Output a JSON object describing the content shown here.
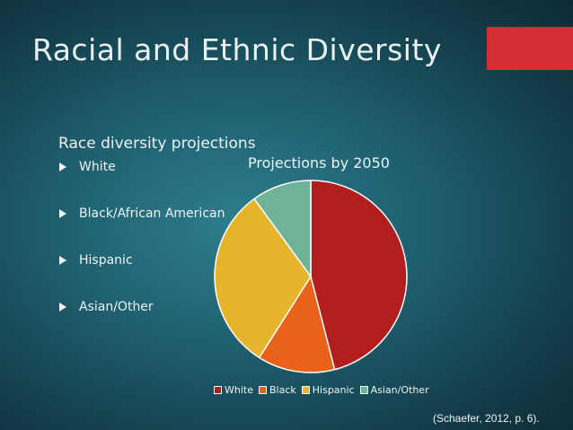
{
  "slide": {
    "title": "Racial and Ethnic Diversity",
    "subtitle": "Race diversity projections",
    "bullets": [
      "White",
      "Black/African American",
      "Hispanic",
      "Asian/Other"
    ],
    "citation": "(Schaefer, 2012, p. 6).",
    "accent_color": "#d42d33"
  },
  "chart_data": {
    "type": "pie",
    "title": "Projections by 2050",
    "categories": [
      "White",
      "Black",
      "Hispanic",
      "Asian/Other"
    ],
    "values": [
      46,
      13,
      31,
      10
    ],
    "colors": [
      "#b21e1e",
      "#e8621a",
      "#e7b52c",
      "#6fb296"
    ],
    "start_angle_deg": 0,
    "direction": "clockwise",
    "legend_position": "bottom"
  }
}
